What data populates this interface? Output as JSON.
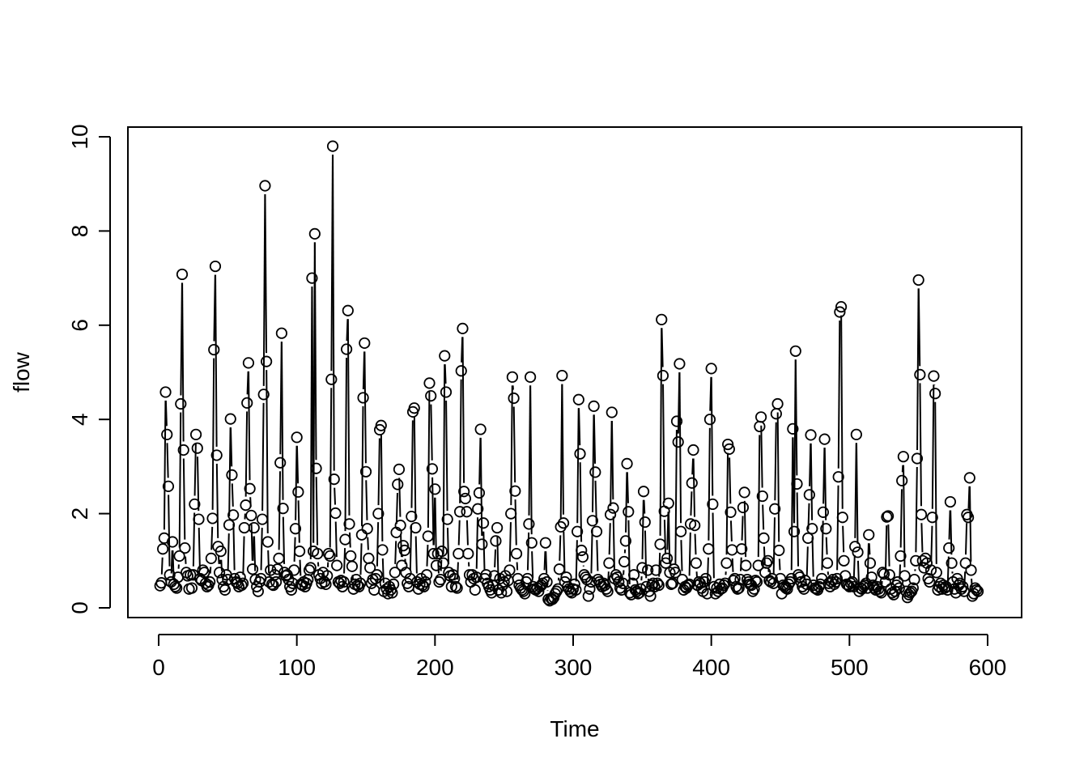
{
  "chart_data": {
    "type": "line",
    "style": "both-lines-and-points",
    "xlabel": "Time",
    "ylabel": "flow",
    "xlim": [
      0,
      600
    ],
    "ylim": [
      0,
      10
    ],
    "x_ticks": [
      0,
      100,
      200,
      300,
      400,
      500,
      600
    ],
    "y_ticks": [
      0,
      2,
      4,
      6,
      8,
      10
    ],
    "grid": false,
    "series": [
      {
        "x_start": 1,
        "x_step": 1,
        "values": [
          0.47,
          0.53,
          1.25,
          1.48,
          4.58,
          3.68,
          2.58,
          0.7,
          0.55,
          1.4,
          0.5,
          0.45,
          0.42,
          0.65,
          1.1,
          4.33,
          7.08,
          3.35,
          1.27,
          0.75,
          0.68,
          0.4,
          0.7,
          0.42,
          0.7,
          2.2,
          3.68,
          3.39,
          1.88,
          0.62,
          0.58,
          0.8,
          0.75,
          0.52,
          0.45,
          0.48,
          0.55,
          1.05,
          1.9,
          5.48,
          7.25,
          3.24,
          1.3,
          0.75,
          1.2,
          0.6,
          0.45,
          0.38,
          0.7,
          0.6,
          1.76,
          4.01,
          2.82,
          1.97,
          0.62,
          0.55,
          0.52,
          0.45,
          0.65,
          0.48,
          0.52,
          1.7,
          2.18,
          4.35,
          5.2,
          2.53,
          1.96,
          0.82,
          1.7,
          0.6,
          0.45,
          0.35,
          0.55,
          0.62,
          1.88,
          4.53,
          8.96,
          5.23,
          1.4,
          0.55,
          0.8,
          0.5,
          0.48,
          0.7,
          0.55,
          0.82,
          1.05,
          3.08,
          5.83,
          2.11,
          0.75,
          0.68,
          0.7,
          0.6,
          0.45,
          0.38,
          0.52,
          0.8,
          1.68,
          3.62,
          2.46,
          1.2,
          0.5,
          0.48,
          0.55,
          0.45,
          0.52,
          0.6,
          0.8,
          0.85,
          7.0,
          1.2,
          7.94,
          2.96,
          1.15,
          0.7,
          0.62,
          0.52,
          0.75,
          0.55,
          0.5,
          0.68,
          1.15,
          1.1,
          4.85,
          9.8,
          2.73,
          2.01,
          0.9,
          0.55,
          0.52,
          0.58,
          0.45,
          0.55,
          1.45,
          5.49,
          6.31,
          1.78,
          1.1,
          0.88,
          0.4,
          0.5,
          0.6,
          0.48,
          0.45,
          0.52,
          1.55,
          4.46,
          5.62,
          2.89,
          1.68,
          1.05,
          0.85,
          0.52,
          0.6,
          0.38,
          0.62,
          0.7,
          2.0,
          3.78,
          3.87,
          1.23,
          0.35,
          0.52,
          0.4,
          0.3,
          0.45,
          0.38,
          0.32,
          0.5,
          0.75,
          1.6,
          2.62,
          2.94,
          1.75,
          0.9,
          1.32,
          1.22,
          0.75,
          0.52,
          0.45,
          0.62,
          1.94,
          4.16,
          4.24,
          1.7,
          0.55,
          0.4,
          0.5,
          0.62,
          0.48,
          0.45,
          0.55,
          0.7,
          1.52,
          4.77,
          4.5,
          2.95,
          1.15,
          2.52,
          0.9,
          1.15,
          0.55,
          0.6,
          1.2,
          0.95,
          5.35,
          4.58,
          1.88,
          0.75,
          0.68,
          0.45,
          0.7,
          0.62,
          0.45,
          0.42,
          1.15,
          2.04,
          5.03,
          5.93,
          2.47,
          2.32,
          2.04,
          1.15,
          0.7,
          0.55,
          0.7,
          0.62,
          0.38,
          0.65,
          2.1,
          2.44,
          3.79,
          1.35,
          1.8,
          0.62,
          0.7,
          0.52,
          0.45,
          0.38,
          0.32,
          0.48,
          0.68,
          1.42,
          1.7,
          0.38,
          0.62,
          0.32,
          0.48,
          0.55,
          0.68,
          0.35,
          0.58,
          0.8,
          2.0,
          4.9,
          4.45,
          2.48,
          1.15,
          0.62,
          0.48,
          0.42,
          0.38,
          0.35,
          0.3,
          0.55,
          0.62,
          1.78,
          4.9,
          1.38,
          0.45,
          0.4,
          0.38,
          0.42,
          0.35,
          0.45,
          0.48,
          0.52,
          0.62,
          1.38,
          0.55,
          0.18,
          0.15,
          0.2,
          0.18,
          0.22,
          0.3,
          0.35,
          0.4,
          0.82,
          1.72,
          4.93,
          1.8,
          0.55,
          0.65,
          0.45,
          0.4,
          0.35,
          0.32,
          0.4,
          0.5,
          0.38,
          1.62,
          4.42,
          3.27,
          1.22,
          1.08,
          0.7,
          0.65,
          0.6,
          0.25,
          0.4,
          0.55,
          1.85,
          4.28,
          2.88,
          1.62,
          0.6,
          0.55,
          0.5,
          0.45,
          0.52,
          0.48,
          0.4,
          0.35,
          0.95,
          1.98,
          4.15,
          2.12,
          0.62,
          0.7,
          0.65,
          0.55,
          0.42,
          0.38,
          0.52,
          0.98,
          1.42,
          3.06,
          2.04,
          0.32,
          0.28,
          0.52,
          0.7,
          0.38,
          0.35,
          0.3,
          0.32,
          0.4,
          0.85,
          2.47,
          1.82,
          0.45,
          0.8,
          0.35,
          0.25,
          0.48,
          0.52,
          0.45,
          0.8,
          0.52,
          0.48,
          1.35,
          6.12,
          4.93,
          2.05,
          0.95,
          1.05,
          2.22,
          0.75,
          0.5,
          0.52,
          0.82,
          0.75,
          3.96,
          3.52,
          5.18,
          1.62,
          0.6,
          0.38,
          0.45,
          0.42,
          0.48,
          0.5,
          1.78,
          2.65,
          3.35,
          1.75,
          0.95,
          0.48,
          0.55,
          0.52,
          0.42,
          0.35,
          0.55,
          0.62,
          0.3,
          1.25,
          4.0,
          5.08,
          2.2,
          0.45,
          0.3,
          0.42,
          0.35,
          0.5,
          0.4,
          0.42,
          0.48,
          0.52,
          0.95,
          3.47,
          3.37,
          2.03,
          1.23,
          0.58,
          0.62,
          0.45,
          0.4,
          0.42,
          0.6,
          1.25,
          2.13,
          2.45,
          0.9,
          0.6,
          0.55,
          0.5,
          0.48,
          0.35,
          0.4,
          0.58,
          0.55,
          0.9,
          3.85,
          4.05,
          2.37,
          1.48,
          0.75,
          0.95,
          1.0,
          0.58,
          0.55,
          0.62,
          0.52,
          2.1,
          4.12,
          4.33,
          1.22,
          0.62,
          0.3,
          0.48,
          0.45,
          0.42,
          0.4,
          0.5,
          0.55,
          0.62,
          3.8,
          1.62,
          5.45,
          2.63,
          0.7,
          0.65,
          0.55,
          0.45,
          0.4,
          0.58,
          0.5,
          1.48,
          2.4,
          3.67,
          1.68,
          0.48,
          0.42,
          0.4,
          0.38,
          0.45,
          0.5,
          0.62,
          2.03,
          3.58,
          1.68,
          0.95,
          0.52,
          0.45,
          0.55,
          0.6,
          0.5,
          0.55,
          0.62,
          2.78,
          6.28,
          6.39,
          1.92,
          1.0,
          0.68,
          0.5,
          0.48,
          0.45,
          0.52,
          0.55,
          0.45,
          1.3,
          3.68,
          1.18,
          0.35,
          0.42,
          0.4,
          0.45,
          0.48,
          0.52,
          0.42,
          1.55,
          0.95,
          0.65,
          0.48,
          0.42,
          0.38,
          0.45,
          0.4,
          0.35,
          0.32,
          0.75,
          0.72,
          0.55,
          1.93,
          1.95,
          0.7,
          0.4,
          0.32,
          0.28,
          0.35,
          0.48,
          0.55,
          0.42,
          1.1,
          2.7,
          3.21,
          0.68,
          0.35,
          0.22,
          0.28,
          0.32,
          0.35,
          0.42,
          0.6,
          1.0,
          3.17,
          6.96,
          4.95,
          1.98,
          1.0,
          0.85,
          1.05,
          0.95,
          0.62,
          0.55,
          0.8,
          1.92,
          4.92,
          4.55,
          0.75,
          0.38,
          0.45,
          0.52,
          0.4,
          0.48,
          0.42,
          0.45,
          0.38,
          1.27,
          2.25,
          0.95,
          0.55,
          0.4,
          0.32,
          0.62,
          0.48,
          0.52,
          0.4,
          0.45,
          0.35,
          0.95,
          1.98,
          1.92,
          2.76,
          0.8,
          0.25,
          0.3,
          0.42,
          0.38,
          0.35
        ]
      }
    ]
  }
}
